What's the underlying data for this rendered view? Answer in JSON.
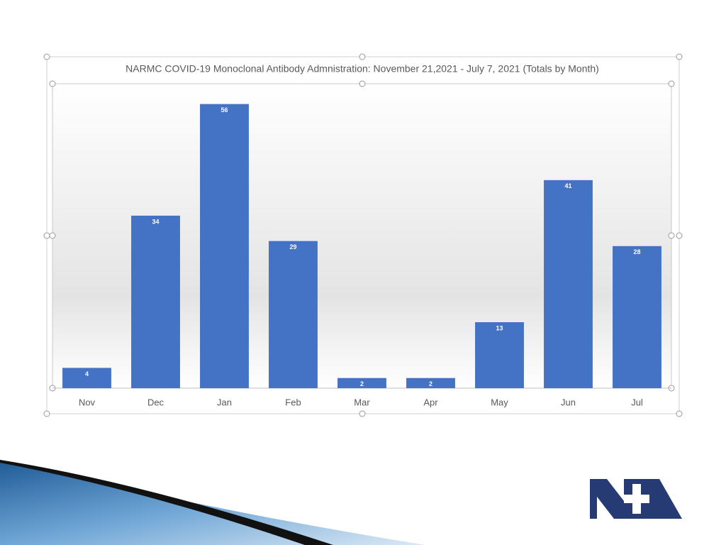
{
  "chart_data": {
    "type": "bar",
    "title": "NARMC COVID-19 Monoclonal Antibody Admnistration: November 21,2021 - July 7, 2021 (Totals by Month)",
    "categories": [
      "Nov",
      "Dec",
      "Jan",
      "Feb",
      "Mar",
      "Apr",
      "May",
      "Jun",
      "Jul"
    ],
    "values": [
      4,
      34,
      56,
      29,
      2,
      2,
      13,
      41,
      28
    ],
    "color": "#4472c4",
    "ylim": [
      0,
      60
    ]
  }
}
